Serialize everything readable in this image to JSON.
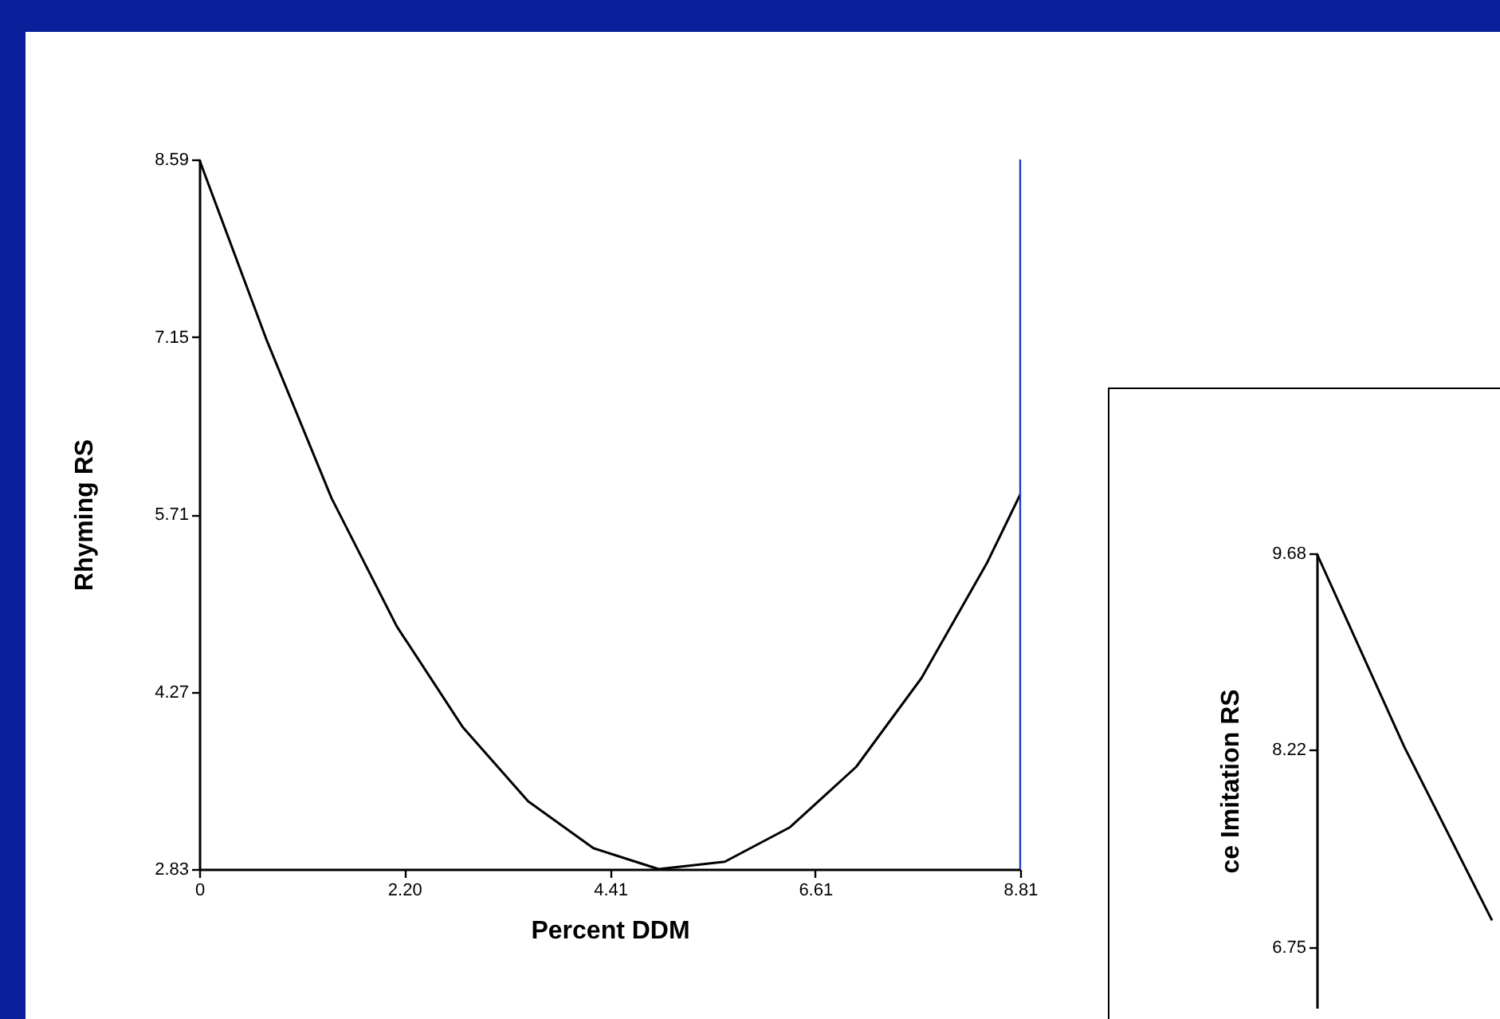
{
  "chart_data": [
    {
      "type": "line",
      "xlabel": "Percent DDM",
      "ylabel": "Rhyming RS",
      "x": [
        0,
        0.72,
        1.42,
        2.12,
        2.83,
        3.53,
        4.23,
        4.93,
        5.64,
        6.34,
        7.05,
        7.75,
        8.45,
        8.81
      ],
      "series": [
        {
          "color": "#000000",
          "values": [
            8.59,
            7.13,
            5.84,
            4.8,
            3.98,
            3.38,
            3.0,
            2.83,
            2.89,
            3.17,
            3.66,
            4.38,
            5.31,
            5.87
          ]
        }
      ],
      "xlim": [
        0,
        8.81
      ],
      "xticks": [
        0,
        {
          "value": 2.2,
          "label": "2.20"
        },
        4.41,
        6.61,
        8.81
      ],
      "ylim": [
        2.83,
        8.59
      ],
      "yticks": [
        2.83,
        4.27,
        5.71,
        7.15,
        8.59
      ],
      "ref_lines": [
        {
          "axis": "x",
          "value": 8.81,
          "color": "#1f3fbf"
        }
      ],
      "grid": false,
      "marker": "none"
    },
    {
      "type": "line",
      "ylabel": "ce Imitation RS",
      "categories": [
        null,
        null,
        null
      ],
      "series": [
        {
          "color": "#000000",
          "values": [
            9.68,
            8.24,
            6.95
          ]
        }
      ],
      "ylim": [
        6.3,
        9.68
      ],
      "yticks": [
        6.75,
        8.22,
        9.68
      ],
      "tick_labels": "y",
      "grid": false,
      "marker": "none"
    }
  ]
}
